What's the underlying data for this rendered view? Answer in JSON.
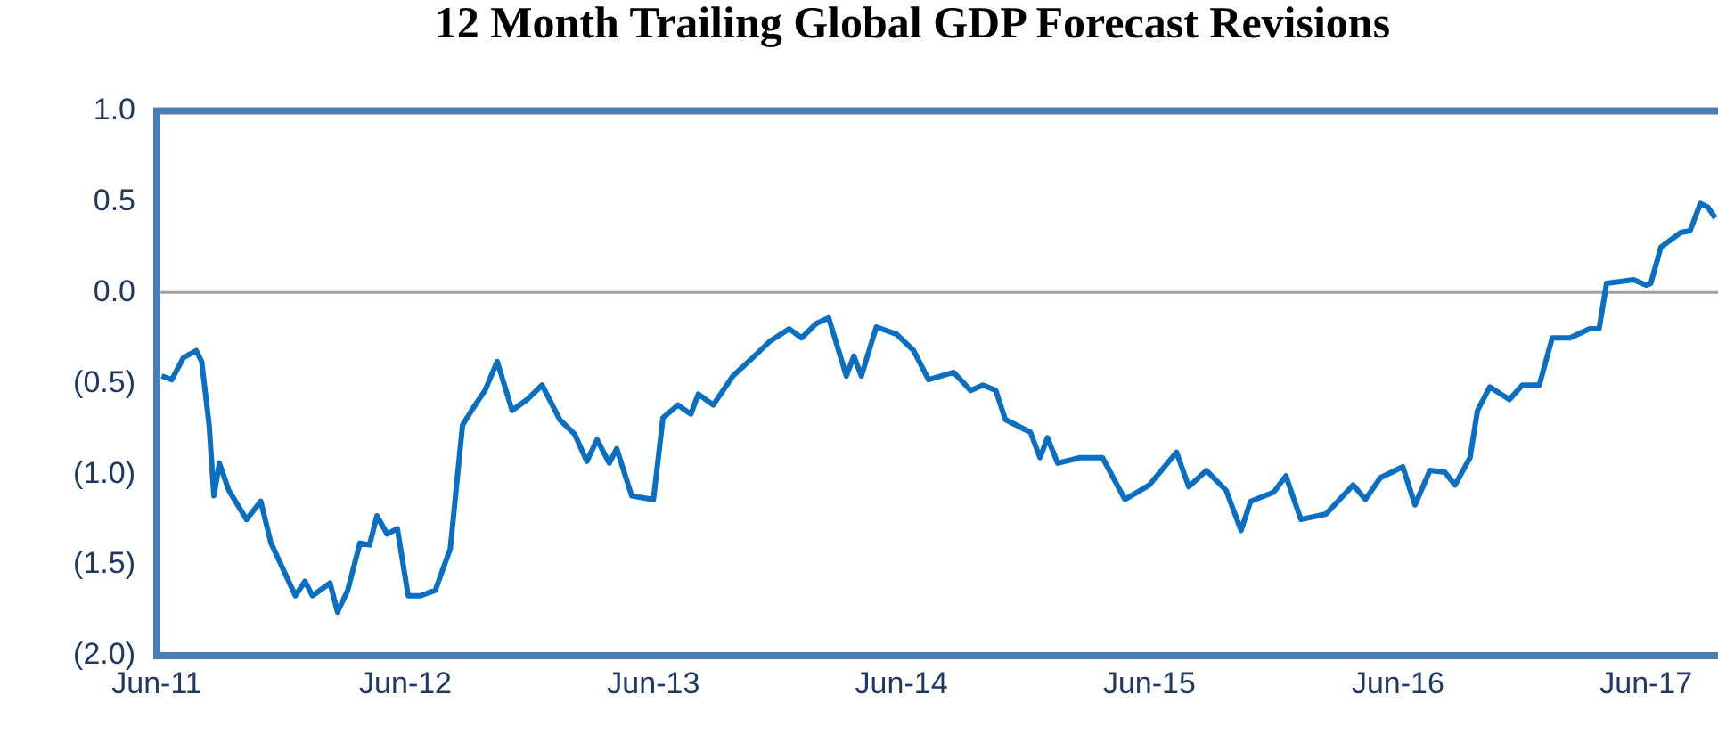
{
  "chart_data": {
    "type": "line",
    "title": "12 Month Trailing Global GDP Forecast Revisions",
    "x": [
      "2011-06-08",
      "2011-06-23",
      "2011-07-10",
      "2011-07-29",
      "2011-08-06",
      "2011-08-17",
      "2011-08-24",
      "2011-09-01",
      "2011-09-15",
      "2011-10-11",
      "2011-11-01",
      "2011-11-16",
      "2011-12-22",
      "2012-01-05",
      "2012-01-16",
      "2012-02-11",
      "2012-02-22",
      "2012-03-08",
      "2012-03-26",
      "2012-04-09",
      "2012-04-20",
      "2012-05-05",
      "2012-05-20",
      "2012-06-05",
      "2012-06-23",
      "2012-07-15",
      "2012-08-06",
      "2012-08-24",
      "2012-09-08",
      "2012-09-26",
      "2012-10-14",
      "2012-11-05",
      "2012-11-27",
      "2012-12-19",
      "2013-01-14",
      "2013-02-05",
      "2013-02-23",
      "2013-03-10",
      "2013-03-28",
      "2013-04-08",
      "2013-04-30",
      "2013-06-01",
      "2013-06-15",
      "2013-07-07",
      "2013-07-26",
      "2013-08-06",
      "2013-08-28",
      "2013-09-26",
      "2013-10-25",
      "2013-11-19",
      "2013-12-18",
      "2014-01-05",
      "2014-01-27",
      "2014-02-14",
      "2014-03-12",
      "2014-03-23",
      "2014-04-03",
      "2014-04-25",
      "2014-05-25",
      "2014-06-19",
      "2014-07-11",
      "2014-08-17",
      "2014-09-11",
      "2014-09-29",
      "2014-10-18",
      "2014-11-01",
      "2014-12-08",
      "2014-12-22",
      "2015-01-02",
      "2015-01-17",
      "2015-02-19",
      "2015-03-24",
      "2015-04-26",
      "2015-06-01",
      "2015-07-11",
      "2015-07-29",
      "2015-08-24",
      "2015-09-22",
      "2015-10-14",
      "2015-10-28",
      "2015-12-01",
      "2015-12-19",
      "2016-01-10",
      "2016-02-16",
      "2016-03-27",
      "2016-04-14",
      "2016-05-06",
      "2016-06-08",
      "2016-06-26",
      "2016-07-18",
      "2016-08-09",
      "2016-08-24",
      "2016-09-15",
      "2016-09-26",
      "2016-10-14",
      "2016-11-12",
      "2016-12-01",
      "2016-12-26",
      "2017-01-14",
      "2017-02-09",
      "2017-03-10",
      "2017-03-24",
      "2017-04-04",
      "2017-05-14",
      "2017-06-01",
      "2017-06-08",
      "2017-06-23",
      "2017-07-22",
      "2017-08-05",
      "2017-08-20",
      "2017-08-31",
      "2017-09-11"
    ],
    "series": [
      {
        "color": "#0a6fc2",
        "values": [
          -0.46,
          -0.48,
          -0.36,
          -0.32,
          -0.38,
          -0.73,
          -1.12,
          -0.94,
          -1.09,
          -1.25,
          -1.15,
          -1.38,
          -1.67,
          -1.59,
          -1.67,
          -1.6,
          -1.76,
          -1.64,
          -1.38,
          -1.39,
          -1.23,
          -1.33,
          -1.3,
          -1.67,
          -1.67,
          -1.64,
          -1.41,
          -0.73,
          -0.64,
          -0.54,
          -0.38,
          -0.65,
          -0.59,
          -0.51,
          -0.7,
          -0.78,
          -0.93,
          -0.81,
          -0.94,
          -0.86,
          -1.12,
          -1.14,
          -0.69,
          -0.62,
          -0.67,
          -0.56,
          -0.62,
          -0.46,
          -0.36,
          -0.27,
          -0.2,
          -0.25,
          -0.17,
          -0.14,
          -0.46,
          -0.35,
          -0.46,
          -0.19,
          -0.23,
          -0.32,
          -0.48,
          -0.44,
          -0.54,
          -0.51,
          -0.54,
          -0.7,
          -0.77,
          -0.91,
          -0.8,
          -0.94,
          -0.91,
          -0.91,
          -1.14,
          -1.06,
          -0.88,
          -1.07,
          -0.98,
          -1.09,
          -1.31,
          -1.15,
          -1.1,
          -1.01,
          -1.25,
          -1.22,
          -1.06,
          -1.14,
          -1.02,
          -0.96,
          -1.17,
          -0.98,
          -0.99,
          -1.06,
          -0.91,
          -0.65,
          -0.52,
          -0.59,
          -0.51,
          -0.51,
          -0.25,
          -0.25,
          -0.2,
          -0.2,
          0.05,
          0.07,
          0.04,
          0.05,
          0.25,
          0.33,
          0.34,
          0.49,
          0.47,
          0.41
        ]
      }
    ],
    "xlim": [
      "2011-06-01",
      "2017-09-15"
    ],
    "xticks": [
      {
        "value": "2011-06-01",
        "label": "Jun-11"
      },
      {
        "value": "2012-06-01",
        "label": "Jun-12"
      },
      {
        "value": "2013-06-01",
        "label": "Jun-13"
      },
      {
        "value": "2014-06-01",
        "label": "Jun-14"
      },
      {
        "value": "2015-06-01",
        "label": "Jun-15"
      },
      {
        "value": "2016-06-01",
        "label": "Jun-16"
      },
      {
        "value": "2017-06-01",
        "label": "Jun-17"
      }
    ],
    "ylim": [
      -2,
      1
    ],
    "yticks": [
      {
        "value": -2,
        "label": "(2.0)"
      },
      {
        "value": -1.5,
        "label": "(1.5)"
      },
      {
        "value": -1,
        "label": "(1.0)"
      },
      {
        "value": -0.5,
        "label": "(0.5)"
      },
      {
        "value": 0,
        "label": "0.0"
      },
      {
        "value": 0.5,
        "label": "0.5"
      },
      {
        "value": 1,
        "label": "1.0"
      }
    ],
    "ref_lines": [
      {
        "axis": "y",
        "value": 0,
        "color": "#a0a0a0"
      }
    ],
    "grid": false,
    "legend": false,
    "marker": "none",
    "line_style": "solid"
  }
}
